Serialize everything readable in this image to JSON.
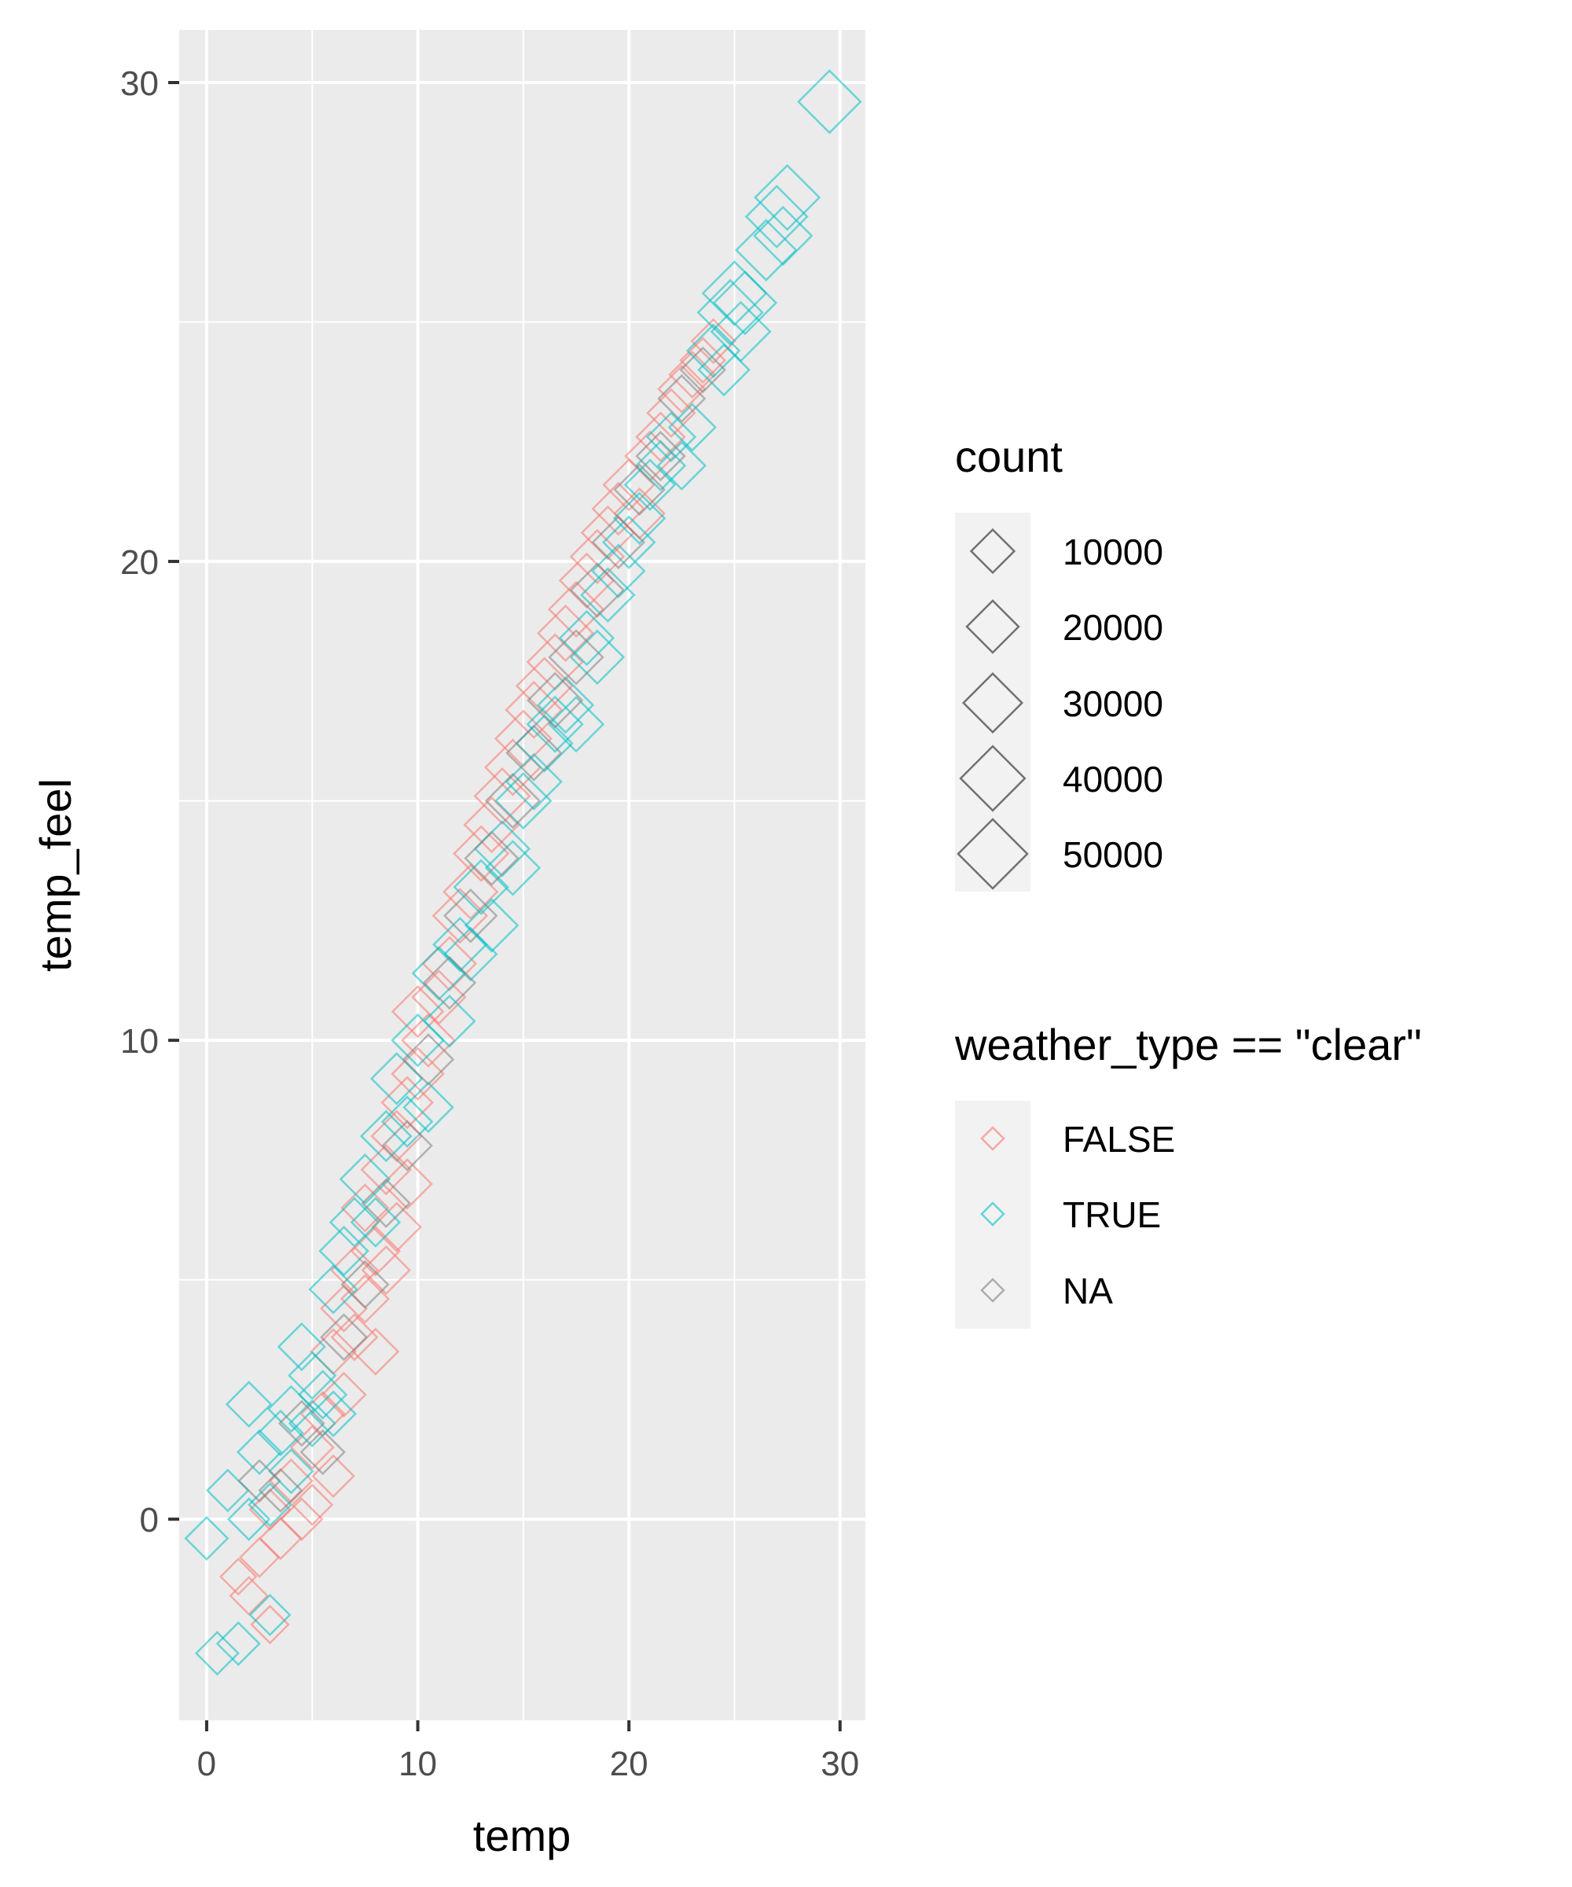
{
  "chart_data": {
    "type": "scatter",
    "xlabel": "temp",
    "ylabel": "temp_feel",
    "xlim": [
      -1.3,
      31.2
    ],
    "ylim": [
      -4.2,
      31.1
    ],
    "x_ticks": [
      0,
      10,
      20,
      30
    ],
    "y_ticks": [
      0,
      10,
      20,
      30
    ],
    "grid": true,
    "shape": "open diamond",
    "legend_position": "right",
    "size_legend": {
      "title": "count",
      "entries": [
        {
          "label": "10000",
          "value": 10000
        },
        {
          "label": "20000",
          "value": 20000
        },
        {
          "label": "30000",
          "value": 30000
        },
        {
          "label": "40000",
          "value": 40000
        },
        {
          "label": "50000",
          "value": 50000
        }
      ]
    },
    "color_legend": {
      "title": "weather_type == \"clear\"",
      "entries": [
        {
          "label": "FALSE",
          "color": "#F8766D"
        },
        {
          "label": "TRUE",
          "color": "#00BFC4"
        },
        {
          "label": "NA",
          "color": "#7F7F7F"
        }
      ]
    },
    "series": [
      {
        "name": "FALSE",
        "color": "#F8766D",
        "points": [
          [
            1.5,
            -1.2,
            4000
          ],
          [
            2.0,
            -1.6,
            5000
          ],
          [
            2.5,
            -0.8,
            6000
          ],
          [
            3.0,
            -2.2,
            5000
          ],
          [
            3.0,
            0.2,
            7000
          ],
          [
            3.5,
            -0.4,
            8000
          ],
          [
            4.0,
            0.8,
            9000
          ],
          [
            4.5,
            0.0,
            8000
          ],
          [
            5.0,
            0.3,
            7000
          ],
          [
            5.0,
            1.5,
            9000
          ],
          [
            5.5,
            2.2,
            10000
          ],
          [
            6.0,
            3.5,
            11000
          ],
          [
            6.0,
            0.9,
            8000
          ],
          [
            6.5,
            4.4,
            12000
          ],
          [
            6.5,
            2.6,
            10000
          ],
          [
            7.0,
            5.2,
            13000
          ],
          [
            7.0,
            3.8,
            12000
          ],
          [
            7.5,
            4.6,
            14000
          ],
          [
            7.5,
            6.5,
            13000
          ],
          [
            8.0,
            5.6,
            15000
          ],
          [
            8.0,
            3.5,
            12000
          ],
          [
            8.5,
            7.3,
            16000
          ],
          [
            8.5,
            5.2,
            14000
          ],
          [
            9.0,
            8.0,
            17000
          ],
          [
            9.0,
            6.1,
            15000
          ],
          [
            9.5,
            8.7,
            18000
          ],
          [
            9.5,
            7.0,
            16000
          ],
          [
            10.0,
            9.3,
            19000
          ],
          [
            10.0,
            10.6,
            18000
          ],
          [
            10.5,
            10.0,
            20000
          ],
          [
            11.0,
            10.9,
            21000
          ],
          [
            11.5,
            11.6,
            21000
          ],
          [
            12.0,
            12.6,
            22000
          ],
          [
            12.5,
            13.1,
            22000
          ],
          [
            13.0,
            13.9,
            23000
          ],
          [
            13.5,
            14.5,
            23000
          ],
          [
            14.0,
            15.1,
            24000
          ],
          [
            14.5,
            15.7,
            24000
          ],
          [
            15.0,
            16.3,
            25000
          ],
          [
            15.5,
            16.9,
            25000
          ],
          [
            16.0,
            17.4,
            25000
          ],
          [
            16.5,
            17.9,
            24000
          ],
          [
            17.0,
            18.5,
            24000
          ],
          [
            17.5,
            19.0,
            23000
          ],
          [
            18.0,
            19.6,
            22000
          ],
          [
            18.5,
            20.1,
            21000
          ],
          [
            19.0,
            20.6,
            20000
          ],
          [
            19.5,
            21.1,
            19000
          ],
          [
            20.0,
            21.6,
            18000
          ],
          [
            20.5,
            21.0,
            17000
          ],
          [
            21.0,
            22.2,
            16000
          ],
          [
            21.5,
            22.6,
            15000
          ],
          [
            22.0,
            23.1,
            14000
          ],
          [
            22.5,
            23.6,
            13000
          ],
          [
            23.0,
            23.9,
            12000
          ],
          [
            23.5,
            24.2,
            11000
          ],
          [
            24.0,
            24.6,
            10000
          ]
        ]
      },
      {
        "name": "TRUE",
        "color": "#00BFC4",
        "points": [
          [
            0.0,
            -0.4,
            9000
          ],
          [
            0.5,
            -2.8,
            9000
          ],
          [
            1.0,
            0.6,
            8000
          ],
          [
            1.5,
            -2.6,
            9000
          ],
          [
            2.0,
            2.4,
            11000
          ],
          [
            2.0,
            0.0,
            8000
          ],
          [
            2.5,
            1.4,
            10000
          ],
          [
            3.0,
            -2.0,
            7000
          ],
          [
            3.0,
            0.3,
            9000
          ],
          [
            3.5,
            1.8,
            11000
          ],
          [
            4.0,
            2.3,
            12000
          ],
          [
            4.0,
            1.0,
            10000
          ],
          [
            4.5,
            3.6,
            13000
          ],
          [
            5.0,
            2.0,
            12000
          ],
          [
            5.0,
            3.0,
            13000
          ],
          [
            5.5,
            2.6,
            14000
          ],
          [
            6.0,
            4.8,
            14000
          ],
          [
            6.0,
            2.2,
            11000
          ],
          [
            6.5,
            5.6,
            15000
          ],
          [
            7.0,
            6.2,
            15000
          ],
          [
            7.5,
            7.1,
            16000
          ],
          [
            8.0,
            6.2,
            15000
          ],
          [
            8.5,
            8.0,
            17000
          ],
          [
            9.0,
            9.2,
            18000
          ],
          [
            9.5,
            8.3,
            17000
          ],
          [
            10.0,
            10.0,
            19000
          ],
          [
            10.5,
            8.6,
            16000
          ],
          [
            11.0,
            11.4,
            20000
          ],
          [
            11.5,
            10.4,
            18000
          ],
          [
            12.0,
            12.0,
            21000
          ],
          [
            12.5,
            11.8,
            20000
          ],
          [
            13.0,
            13.2,
            22000
          ],
          [
            13.5,
            12.4,
            20000
          ],
          [
            14.0,
            14.0,
            23000
          ],
          [
            14.5,
            13.6,
            22000
          ],
          [
            15.0,
            15.0,
            24000
          ],
          [
            15.5,
            15.4,
            24000
          ],
          [
            16.0,
            16.2,
            25000
          ],
          [
            16.5,
            16.6,
            24000
          ],
          [
            17.0,
            17.0,
            24000
          ],
          [
            17.5,
            16.6,
            23000
          ],
          [
            18.0,
            18.4,
            22000
          ],
          [
            18.5,
            18.0,
            21000
          ],
          [
            19.0,
            19.3,
            21000
          ],
          [
            19.5,
            19.8,
            20000
          ],
          [
            20.0,
            20.4,
            19000
          ],
          [
            20.5,
            20.9,
            18000
          ],
          [
            21.0,
            21.6,
            17000
          ],
          [
            21.5,
            22.0,
            16000
          ],
          [
            22.0,
            22.6,
            15000
          ],
          [
            22.5,
            22.0,
            14000
          ],
          [
            23.0,
            22.8,
            13000
          ],
          [
            24.0,
            24.4,
            20000
          ],
          [
            24.5,
            24.0,
            18000
          ],
          [
            24.8,
            25.2,
            40000
          ],
          [
            25.0,
            25.6,
            38000
          ],
          [
            25.3,
            24.8,
            30000
          ],
          [
            25.5,
            25.4,
            36000
          ],
          [
            26.5,
            26.5,
            32000
          ],
          [
            27.0,
            27.2,
            34000
          ],
          [
            27.3,
            26.8,
            28000
          ],
          [
            27.5,
            27.6,
            40000
          ],
          [
            29.5,
            29.6,
            36000
          ]
        ]
      },
      {
        "name": "NA",
        "color": "#7F7F7F",
        "points": [
          [
            2.5,
            0.8,
            8000
          ],
          [
            3.5,
            0.6,
            9000
          ],
          [
            4.5,
            2.0,
            11000
          ],
          [
            5.5,
            1.4,
            10000
          ],
          [
            6.5,
            3.8,
            12000
          ],
          [
            7.5,
            4.9,
            13000
          ],
          [
            8.5,
            6.6,
            14000
          ],
          [
            9.5,
            7.8,
            16000
          ],
          [
            10.5,
            9.6,
            17000
          ],
          [
            11.5,
            11.2,
            19000
          ],
          [
            12.5,
            12.6,
            20000
          ],
          [
            13.5,
            13.8,
            21000
          ],
          [
            14.5,
            15.0,
            22000
          ],
          [
            15.5,
            16.0,
            23000
          ],
          [
            16.5,
            17.1,
            23000
          ],
          [
            17.5,
            18.0,
            22000
          ],
          [
            18.5,
            19.4,
            21000
          ],
          [
            19.5,
            20.4,
            19000
          ],
          [
            20.5,
            21.5,
            17000
          ],
          [
            21.5,
            22.2,
            15000
          ],
          [
            22.5,
            23.4,
            13000
          ],
          [
            23.5,
            24.0,
            11000
          ]
        ]
      }
    ]
  }
}
